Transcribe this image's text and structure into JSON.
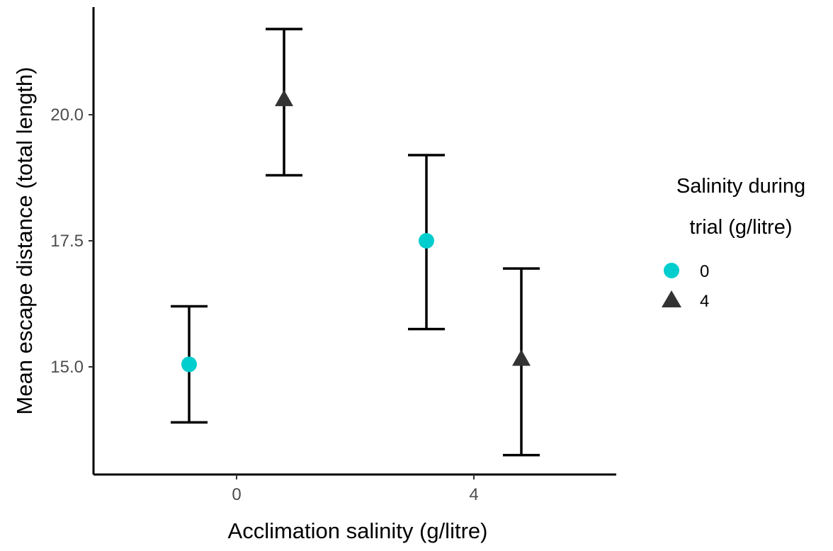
{
  "chart_data": {
    "type": "scatter",
    "xlabel": "Acclimation salinity (g/litre)",
    "ylabel": "Mean escape distance (total length)",
    "x_categories": [
      "0",
      "4"
    ],
    "y_ticks": [
      "15.0",
      "17.5",
      "20.0"
    ],
    "ylim": [
      12.8,
      22.2
    ],
    "legend": {
      "title_lines": [
        "Salinity during",
        "trial (g/litre)"
      ],
      "position": "right"
    },
    "series": [
      {
        "name": "0",
        "shape": "circle",
        "color": "#00CDCD",
        "points": [
          {
            "x": "0",
            "y": 15.05,
            "lower": 13.9,
            "upper": 16.2
          },
          {
            "x": "4",
            "y": 17.5,
            "lower": 15.75,
            "upper": 19.2
          }
        ]
      },
      {
        "name": "4",
        "shape": "triangle",
        "color": "#333333",
        "points": [
          {
            "x": "0",
            "y": 20.3,
            "lower": 18.8,
            "upper": 21.7
          },
          {
            "x": "4",
            "y": 15.15,
            "lower": 13.25,
            "upper": 16.95
          }
        ]
      }
    ]
  }
}
